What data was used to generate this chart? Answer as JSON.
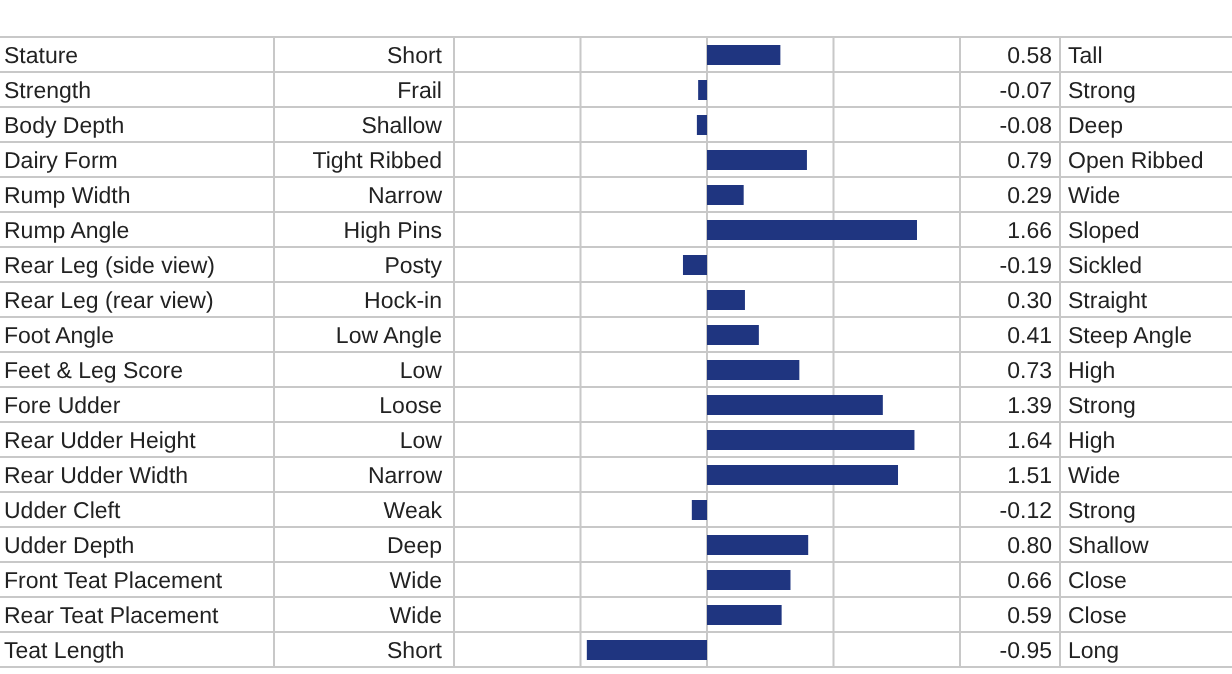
{
  "chart_data": {
    "type": "bar",
    "orientation": "horizontal",
    "categories": [
      "Stature",
      "Strength",
      "Body Depth",
      "Dairy Form",
      "Rump Width",
      "Rump Angle",
      "Rear Leg (side view)",
      "Rear Leg (rear view)",
      "Foot Angle",
      "Feet & Leg Score",
      "Fore Udder",
      "Rear Udder Height",
      "Rear Udder Width",
      "Udder Cleft",
      "Udder Depth",
      "Front Teat Placement",
      "Rear Teat Placement",
      "Teat Length"
    ],
    "values": [
      0.58,
      -0.07,
      -0.08,
      0.79,
      0.29,
      1.66,
      -0.19,
      0.3,
      0.41,
      0.73,
      1.39,
      1.64,
      1.51,
      -0.12,
      0.8,
      0.66,
      0.59,
      -0.95
    ],
    "value_labels": [
      "0.58",
      "-0.07",
      "-0.08",
      "0.79",
      "0.29",
      "1.66",
      "-0.19",
      "0.30",
      "0.41",
      "0.73",
      "1.39",
      "1.64",
      "1.51",
      "-0.12",
      "0.80",
      "0.66",
      "0.59",
      "-0.95"
    ],
    "color": "#1f3580",
    "xlim": [
      -2,
      2
    ],
    "xticks": [
      {
        "value": -2,
        "label": null
      },
      {
        "value": -1,
        "label": null
      },
      {
        "value": 0,
        "label": null
      },
      {
        "value": 1,
        "label": null
      },
      {
        "value": 2,
        "label": null
      }
    ],
    "grid": true,
    "tick_labels": "y",
    "annotations": [
      "Short",
      "Frail",
      "Shallow",
      "Tight Ribbed",
      "Narrow",
      "High Pins",
      "Posty",
      "Hock-in",
      "Low Angle",
      "Low",
      "Loose",
      "Low",
      "Narrow",
      "Weak",
      "Deep",
      "Wide",
      "Wide",
      "Short",
      "Tall",
      "Strong",
      "Deep",
      "Open Ribbed",
      "Wide",
      "Sloped",
      "Sickled",
      "Straight",
      "Steep Angle",
      "High",
      "Strong",
      "High",
      "Wide",
      "Strong",
      "Shallow",
      "Close",
      "Close",
      "Long"
    ]
  }
}
